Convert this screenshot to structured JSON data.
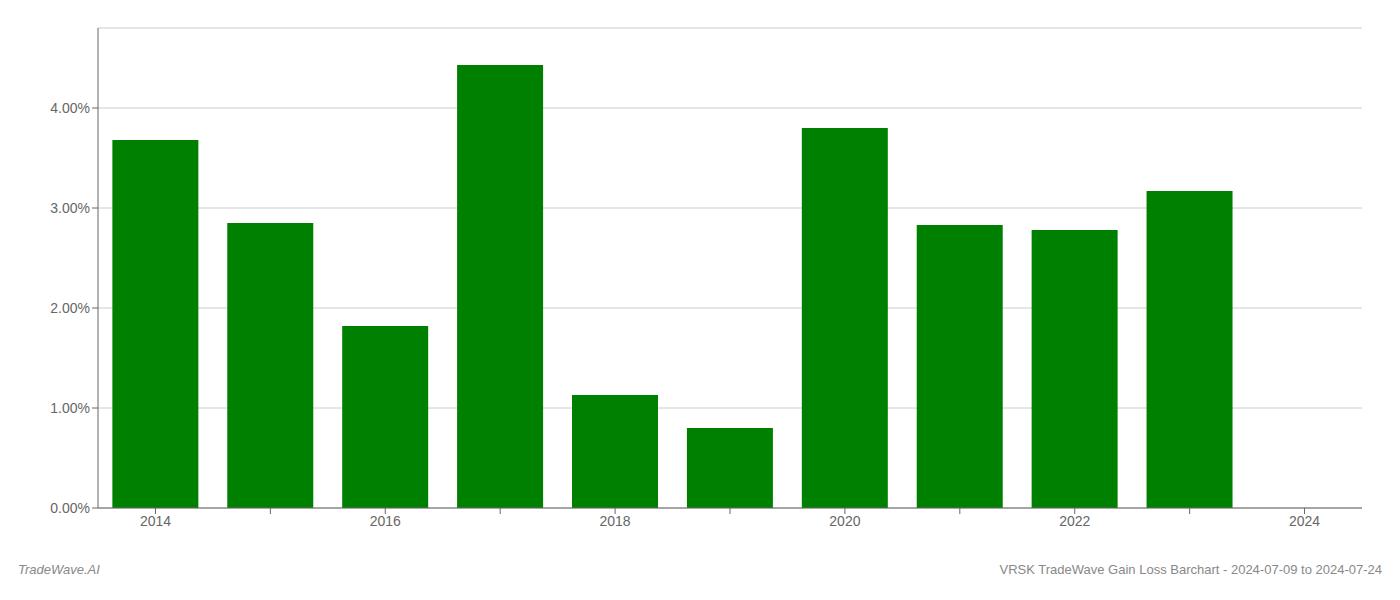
{
  "chart_data": {
    "type": "bar",
    "categories": [
      "2014",
      null,
      "2016",
      null,
      "2018",
      null,
      "2020",
      null,
      "2022",
      null,
      "2024"
    ],
    "values": [
      0.0368,
      0.0285,
      0.0182,
      0.0443,
      0.0113,
      0.008,
      0.038,
      0.0283,
      0.0278,
      0.0317,
      null
    ],
    "color": "#008000",
    "ylim": [
      0,
      0.048
    ],
    "yticks": [
      {
        "value": 0.0,
        "label": "0.00%"
      },
      {
        "value": 0.01,
        "label": "1.00%"
      },
      {
        "value": 0.02,
        "label": "2.00%"
      },
      {
        "value": 0.03,
        "label": "3.00%"
      },
      {
        "value": 0.04,
        "label": "4.00%"
      }
    ],
    "grid": true,
    "annotations": [
      "TradeWave.AI",
      "VRSK TradeWave Gain Loss Barchart - 2024-07-09 to 2024-07-24"
    ]
  }
}
